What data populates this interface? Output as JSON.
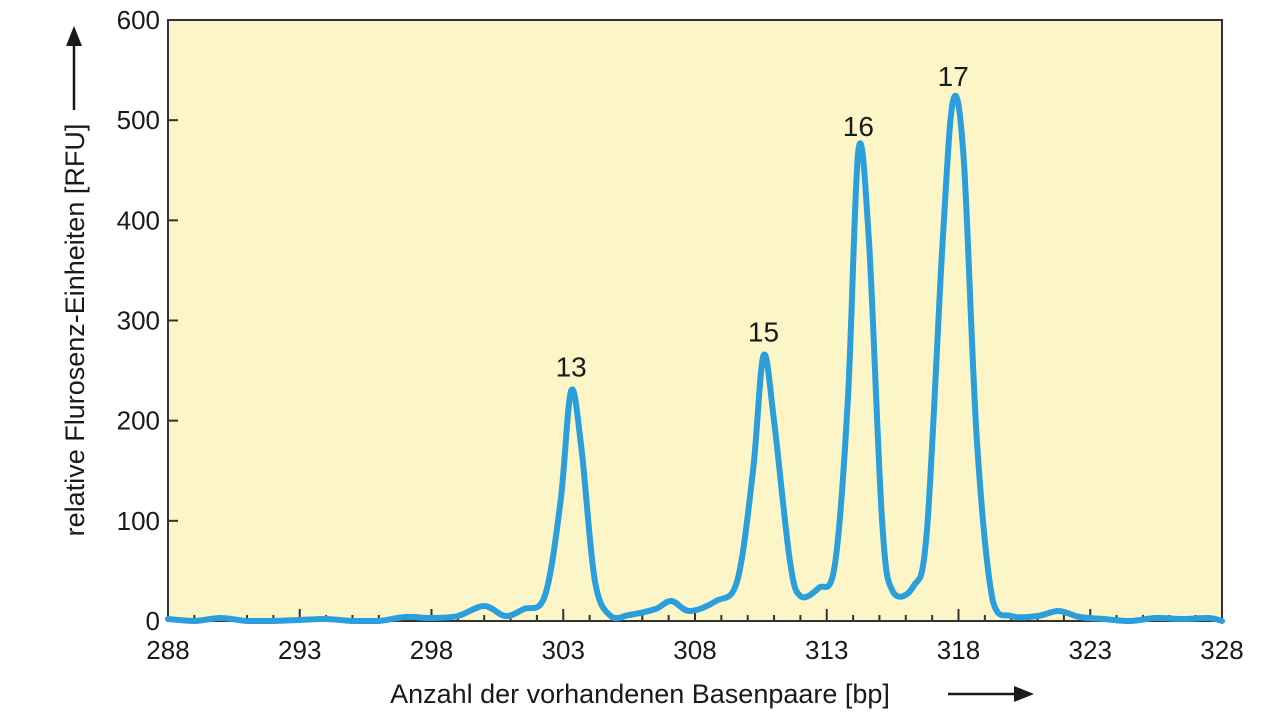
{
  "chart_data": {
    "type": "line",
    "xlabel": "Anzahl der vorhandenen Basenpaare [bp]",
    "ylabel": "relative Flurosenz-Einheiten [RFU]",
    "xlim": [
      288,
      328
    ],
    "ylim": [
      0,
      600
    ],
    "x_ticks": [
      288,
      293,
      298,
      303,
      308,
      313,
      318,
      323,
      328
    ],
    "y_ticks": [
      0,
      100,
      200,
      300,
      400,
      500,
      600
    ],
    "grid": false,
    "background_color": "#fbf5c8",
    "line_color": "#2a9fdc",
    "series": [
      {
        "points": [
          [
            288,
            2
          ],
          [
            289,
            0
          ],
          [
            290,
            3
          ],
          [
            291,
            0
          ],
          [
            292,
            0
          ],
          [
            293,
            1
          ],
          [
            294,
            2
          ],
          [
            295,
            0
          ],
          [
            296,
            0
          ],
          [
            297,
            4
          ],
          [
            298,
            3
          ],
          [
            299,
            5
          ],
          [
            300,
            15
          ],
          [
            300.8,
            5
          ],
          [
            301.5,
            12
          ],
          [
            302.3,
            25
          ],
          [
            302.9,
            120
          ],
          [
            303.3,
            230
          ],
          [
            303.7,
            170
          ],
          [
            304.2,
            40
          ],
          [
            304.8,
            5
          ],
          [
            305.5,
            6
          ],
          [
            306.5,
            12
          ],
          [
            307.1,
            20
          ],
          [
            307.8,
            10
          ],
          [
            308.8,
            20
          ],
          [
            309.6,
            40
          ],
          [
            310.2,
            150
          ],
          [
            310.6,
            265
          ],
          [
            311.0,
            200
          ],
          [
            311.6,
            60
          ],
          [
            312.0,
            25
          ],
          [
            312.7,
            33
          ],
          [
            313.3,
            55
          ],
          [
            313.8,
            220
          ],
          [
            314.2,
            470
          ],
          [
            314.6,
            380
          ],
          [
            315.1,
            100
          ],
          [
            315.5,
            30
          ],
          [
            316.3,
            35
          ],
          [
            316.8,
            90
          ],
          [
            317.4,
            380
          ],
          [
            317.8,
            520
          ],
          [
            318.2,
            460
          ],
          [
            318.7,
            180
          ],
          [
            319.3,
            20
          ],
          [
            320,
            5
          ],
          [
            321,
            5
          ],
          [
            321.8,
            10
          ],
          [
            322.6,
            4
          ],
          [
            323.5,
            2
          ],
          [
            324.5,
            0
          ],
          [
            325.5,
            3
          ],
          [
            326.5,
            2
          ],
          [
            327.5,
            3
          ],
          [
            328,
            0
          ]
        ]
      }
    ],
    "peak_labels": [
      {
        "x": 303.3,
        "y": 230,
        "text": "13"
      },
      {
        "x": 310.6,
        "y": 265,
        "text": "15"
      },
      {
        "x": 314.2,
        "y": 470,
        "text": "16"
      },
      {
        "x": 317.8,
        "y": 520,
        "text": "17"
      }
    ]
  }
}
